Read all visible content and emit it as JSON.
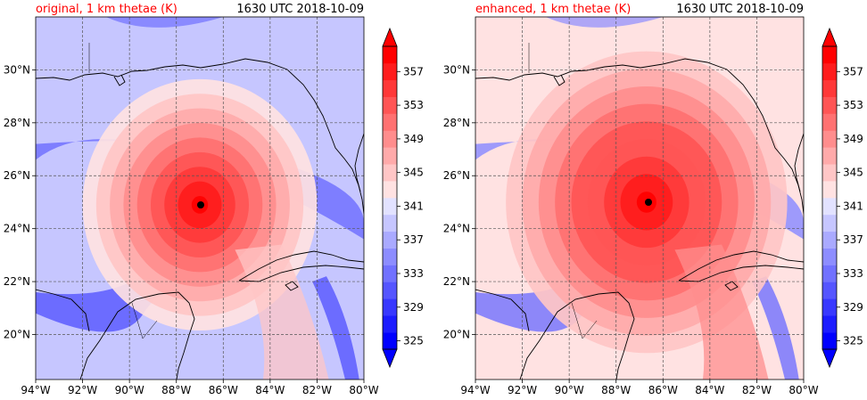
{
  "colors": {
    "title_left": "#ff0000",
    "title_right": "#000000",
    "coast": "#000000",
    "grid": "#555555"
  },
  "colorbar": {
    "ticks": [
      "325",
      "329",
      "333",
      "337",
      "341",
      "345",
      "349",
      "353",
      "357"
    ],
    "levels": [
      325,
      327,
      329,
      331,
      333,
      335,
      337,
      339,
      341,
      343,
      345,
      347,
      349,
      351,
      353,
      355,
      357,
      359
    ],
    "colors": [
      "#0000ff",
      "#1c1cff",
      "#3838ff",
      "#5555ff",
      "#7171ff",
      "#8d8dff",
      "#aaaaff",
      "#c6c6ff",
      "#e2e2ff",
      "#ffe2e2",
      "#ffc6c6",
      "#ffaaaa",
      "#ff8d8d",
      "#ff7171",
      "#ff5555",
      "#ff3838",
      "#ff1c1c",
      "#ff0000"
    ],
    "extend": "both"
  },
  "chart_data": [
    {
      "type": "heatmap",
      "title": "original, 1 km thetae (K)",
      "title_right": "1630 UTC 2018-10-09",
      "xlim": [
        -94,
        -80
      ],
      "ylim": [
        18.3,
        32.0
      ],
      "x_ticks": [
        "94°W",
        "92°W",
        "90°W",
        "88°W",
        "86°W",
        "84°W",
        "82°W",
        "80°W"
      ],
      "y_ticks": [
        "20°N",
        "22°N",
        "24°N",
        "26°N",
        "28°N",
        "30°N"
      ],
      "grid": true,
      "storm_center": {
        "lon": -87.0,
        "lat": 24.9
      },
      "fields": {
        "background_K": 340,
        "core_peak_K": 359,
        "core_radius_deg": 5.0,
        "cool_band_min_K": 331
      }
    },
    {
      "type": "heatmap",
      "title": "enhanced, 1 km thetae (K)",
      "title_right": "1630 UTC 2018-10-09",
      "xlim": [
        -94,
        -80
      ],
      "ylim": [
        18.3,
        32.0
      ],
      "x_ticks": [
        "94°W",
        "92°W",
        "90°W",
        "88°W",
        "86°W",
        "84°W",
        "82°W",
        "80°W"
      ],
      "y_ticks": [
        "20°N",
        "22°N",
        "24°N",
        "26°N",
        "28°N",
        "30°N"
      ],
      "grid": true,
      "storm_center": {
        "lon": -86.7,
        "lat": 25.0
      },
      "fields": {
        "background_K": 343,
        "core_peak_K": 360,
        "core_radius_deg": 6.0,
        "cool_band_min_K": 333
      }
    }
  ]
}
